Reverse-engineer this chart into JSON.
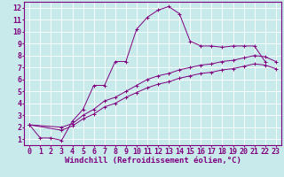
{
  "background_color": "#c8eaea",
  "line_color": "#800080",
  "grid_color": "#b0d8d8",
  "xlabel": "Windchill (Refroidissement éolien,°C)",
  "xlabel_fontsize": 6.5,
  "tick_fontsize": 6,
  "xlim": [
    -0.5,
    23.5
  ],
  "ylim": [
    0.5,
    12.5
  ],
  "xticks": [
    0,
    1,
    2,
    3,
    4,
    5,
    6,
    7,
    8,
    9,
    10,
    11,
    12,
    13,
    14,
    15,
    16,
    17,
    18,
    19,
    20,
    21,
    22,
    23
  ],
  "yticks": [
    1,
    2,
    3,
    4,
    5,
    6,
    7,
    8,
    9,
    10,
    11,
    12
  ],
  "line1_x": [
    0,
    1,
    2,
    3,
    4,
    5,
    6,
    7,
    8,
    9,
    10,
    11,
    12,
    13,
    14,
    15,
    16,
    17,
    18,
    19,
    20,
    21,
    22
  ],
  "line1_y": [
    2.2,
    1.1,
    1.1,
    0.9,
    2.5,
    3.5,
    5.5,
    5.5,
    7.5,
    7.5,
    10.2,
    11.2,
    11.8,
    12.1,
    11.5,
    9.2,
    8.8,
    8.8,
    8.7,
    8.8,
    8.8,
    8.8,
    7.5
  ],
  "line2_x": [
    0,
    3,
    4,
    5,
    6,
    7,
    8,
    9,
    10,
    11,
    12,
    13,
    14,
    15,
    16,
    17,
    18,
    19,
    20,
    21,
    22,
    23
  ],
  "line2_y": [
    2.2,
    2.0,
    2.3,
    3.0,
    3.5,
    4.2,
    4.5,
    5.0,
    5.5,
    6.0,
    6.3,
    6.5,
    6.8,
    7.0,
    7.2,
    7.3,
    7.5,
    7.6,
    7.8,
    8.0,
    7.9,
    7.5
  ],
  "line3_x": [
    0,
    3,
    4,
    5,
    6,
    7,
    8,
    9,
    10,
    11,
    12,
    13,
    14,
    15,
    16,
    17,
    18,
    19,
    20,
    21,
    22,
    23
  ],
  "line3_y": [
    2.2,
    1.75,
    2.1,
    2.7,
    3.1,
    3.7,
    4.0,
    4.5,
    4.9,
    5.3,
    5.6,
    5.8,
    6.1,
    6.3,
    6.5,
    6.6,
    6.8,
    6.9,
    7.1,
    7.3,
    7.2,
    6.9
  ]
}
